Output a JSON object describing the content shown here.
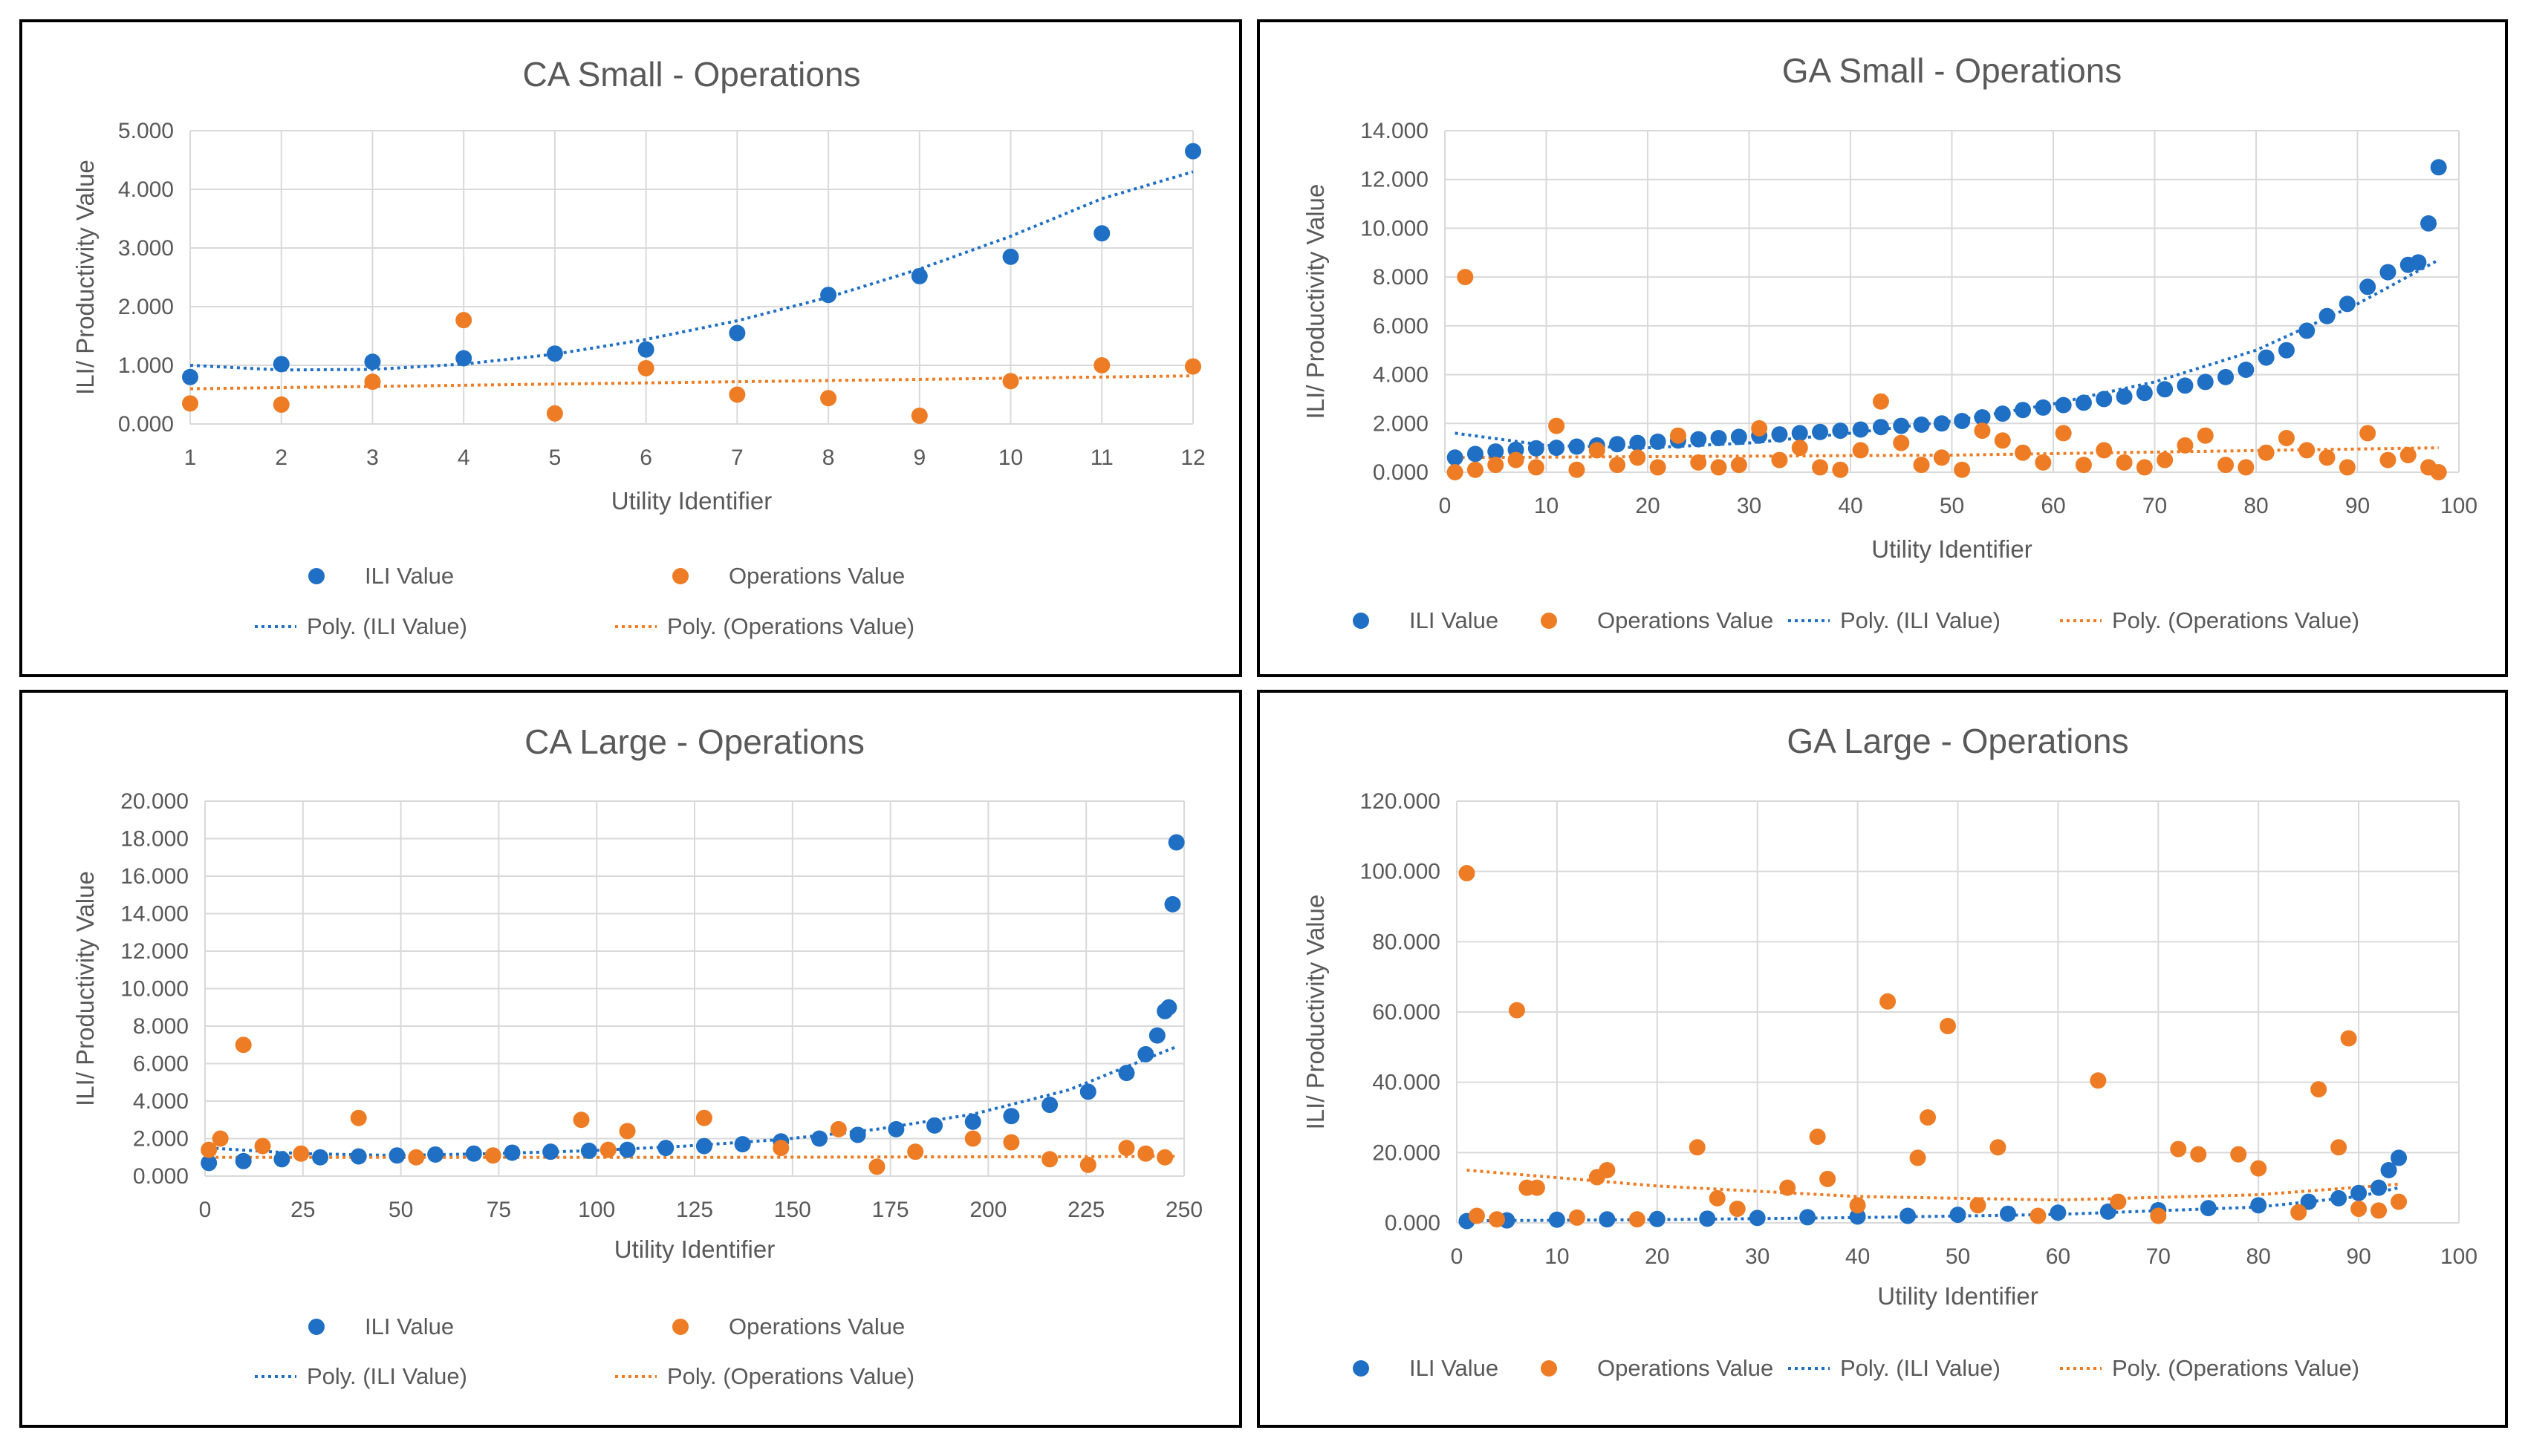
{
  "colors": {
    "ili": "#1f6fc4",
    "operations": "#ee7c24",
    "grid": "#d9d9d9",
    "text": "#595959",
    "border": "#000000"
  },
  "legend_labels": [
    "ILI Value",
    "Operations Value",
    "Poly. (ILI Value)",
    "Poly. (Operations Value)"
  ],
  "chart_data": [
    {
      "type": "scatter",
      "title": "CA Small - Operations",
      "xlabel": "Utility Identifier",
      "ylabel": "ILI/ Productivity Value",
      "xlim": [
        1,
        12
      ],
      "ylim": [
        0,
        5
      ],
      "xticks": [
        "1",
        "2",
        "3",
        "4",
        "5",
        "6",
        "7",
        "8",
        "9",
        "10",
        "11",
        "12"
      ],
      "yticks": [
        "0.000",
        "1.000",
        "2.000",
        "3.000",
        "4.000",
        "5.000"
      ],
      "grid": true,
      "legend_position": "bottom",
      "series": [
        {
          "name": "ILI Value",
          "x": [
            1,
            2,
            3,
            4,
            5,
            6,
            7,
            8,
            9,
            10,
            11,
            12
          ],
          "y": [
            0.8,
            1.02,
            1.06,
            1.12,
            1.2,
            1.27,
            1.55,
            2.2,
            2.52,
            2.85,
            3.25,
            4.65
          ]
        },
        {
          "name": "Operations Value",
          "x": [
            1,
            2,
            3,
            4,
            5,
            6,
            7,
            8,
            9,
            10,
            11,
            12
          ],
          "y": [
            0.35,
            0.33,
            0.72,
            1.77,
            0.18,
            0.95,
            0.5,
            0.44,
            0.14,
            0.73,
            1.0,
            0.98
          ]
        }
      ],
      "trendlines": [
        {
          "name": "Poly. (ILI Value)",
          "x": [
            1,
            2,
            3,
            4,
            5,
            6,
            7,
            8,
            9,
            10,
            11,
            12
          ],
          "y": [
            1.0,
            0.92,
            0.93,
            1.02,
            1.19,
            1.44,
            1.76,
            2.16,
            2.64,
            3.2,
            3.84,
            4.3
          ]
        },
        {
          "name": "Poly. (Operations Value)",
          "x": [
            1,
            12
          ],
          "y": [
            0.6,
            0.82
          ]
        }
      ]
    },
    {
      "type": "scatter",
      "title": "GA Small - Operations",
      "xlabel": "Utility Identifier",
      "ylabel": "ILI/ Productivity Value",
      "xlim": [
        0,
        100
      ],
      "ylim": [
        0,
        14
      ],
      "xticks": [
        "0",
        "10",
        "20",
        "30",
        "40",
        "50",
        "60",
        "70",
        "80",
        "90",
        "100"
      ],
      "yticks": [
        "0.000",
        "2.000",
        "4.000",
        "6.000",
        "8.000",
        "10.000",
        "12.000",
        "14.000"
      ],
      "grid": true,
      "legend_position": "bottom",
      "series": [
        {
          "name": "ILI Value",
          "x": [
            1,
            3,
            5,
            7,
            9,
            11,
            13,
            15,
            17,
            19,
            21,
            23,
            25,
            27,
            29,
            31,
            33,
            35,
            37,
            39,
            41,
            43,
            45,
            47,
            49,
            51,
            53,
            55,
            57,
            59,
            61,
            63,
            65,
            67,
            69,
            71,
            73,
            75,
            77,
            79,
            81,
            83,
            85,
            87,
            89,
            91,
            93,
            95,
            96,
            97,
            98
          ],
          "y": [
            0.6,
            0.75,
            0.85,
            0.92,
            0.98,
            1.0,
            1.05,
            1.1,
            1.15,
            1.2,
            1.25,
            1.3,
            1.35,
            1.4,
            1.45,
            1.5,
            1.55,
            1.6,
            1.65,
            1.7,
            1.75,
            1.85,
            1.9,
            1.95,
            2.0,
            2.1,
            2.25,
            2.4,
            2.55,
            2.65,
            2.75,
            2.85,
            3.0,
            3.1,
            3.25,
            3.4,
            3.55,
            3.7,
            3.9,
            4.2,
            4.7,
            5.0,
            5.8,
            6.4,
            6.9,
            7.6,
            8.2,
            8.5,
            8.6,
            10.2,
            12.5
          ]
        },
        {
          "name": "Operations Value",
          "x": [
            1,
            2,
            3,
            5,
            7,
            9,
            11,
            13,
            15,
            17,
            19,
            21,
            23,
            25,
            27,
            29,
            31,
            33,
            35,
            37,
            39,
            41,
            43,
            45,
            47,
            49,
            51,
            53,
            55,
            57,
            59,
            61,
            63,
            65,
            67,
            69,
            71,
            73,
            75,
            77,
            79,
            81,
            83,
            85,
            87,
            89,
            91,
            93,
            95,
            97,
            98
          ],
          "y": [
            0.0,
            8.0,
            0.1,
            0.3,
            0.5,
            0.2,
            1.9,
            0.1,
            0.9,
            0.3,
            0.6,
            0.2,
            1.5,
            0.4,
            0.2,
            0.3,
            1.8,
            0.5,
            1.0,
            0.2,
            0.1,
            0.9,
            2.9,
            1.2,
            0.3,
            0.6,
            0.1,
            1.7,
            1.3,
            0.8,
            0.4,
            1.6,
            0.3,
            0.9,
            0.4,
            0.2,
            0.5,
            1.1,
            1.5,
            0.3,
            0.2,
            0.8,
            1.4,
            0.9,
            0.6,
            0.2,
            1.6,
            0.5,
            0.7,
            0.2,
            0.0
          ]
        }
      ],
      "trendlines": [
        {
          "name": "Poly. (ILI Value)",
          "x": [
            1,
            10,
            20,
            30,
            40,
            50,
            60,
            70,
            80,
            90,
            98
          ],
          "y": [
            1.6,
            1.1,
            1.0,
            1.2,
            1.6,
            2.1,
            2.8,
            3.7,
            5.0,
            6.9,
            8.7
          ]
        },
        {
          "name": "Poly. (Operations Value)",
          "x": [
            1,
            50,
            98
          ],
          "y": [
            0.6,
            0.7,
            1.0
          ]
        }
      ]
    },
    {
      "type": "scatter",
      "title": "CA Large - Operations",
      "xlabel": "Utility Identifier",
      "ylabel": "ILI/ Productivity Value",
      "xlim": [
        0,
        255
      ],
      "ylim": [
        0,
        20
      ],
      "xticks": [
        "0",
        "25",
        "50",
        "75",
        "100",
        "125",
        "150",
        "175",
        "200",
        "225",
        "250"
      ],
      "yticks": [
        "0.000",
        "2.000",
        "4.000",
        "6.000",
        "8.000",
        "10.000",
        "12.000",
        "14.000",
        "16.000",
        "18.000",
        "20.000"
      ],
      "grid": true,
      "legend_position": "bottom",
      "series": [
        {
          "name": "ILI Value",
          "x": [
            1,
            10,
            20,
            30,
            40,
            50,
            60,
            70,
            80,
            90,
            100,
            110,
            120,
            130,
            140,
            150,
            160,
            170,
            180,
            190,
            200,
            210,
            220,
            230,
            240,
            245,
            248,
            250,
            251,
            252,
            253
          ],
          "y": [
            0.7,
            0.8,
            0.9,
            1.0,
            1.05,
            1.1,
            1.15,
            1.2,
            1.25,
            1.3,
            1.35,
            1.4,
            1.5,
            1.6,
            1.7,
            1.85,
            2.0,
            2.2,
            2.5,
            2.7,
            2.9,
            3.2,
            3.8,
            4.5,
            5.5,
            6.5,
            7.5,
            8.8,
            9.0,
            14.5,
            17.8
          ]
        },
        {
          "name": "Operations Value",
          "x": [
            1,
            4,
            10,
            15,
            25,
            40,
            55,
            75,
            98,
            105,
            110,
            130,
            150,
            165,
            175,
            185,
            200,
            210,
            220,
            230,
            240,
            245,
            250
          ],
          "y": [
            1.4,
            2.0,
            7.0,
            1.6,
            1.2,
            3.1,
            1.0,
            1.1,
            3.0,
            1.4,
            2.4,
            3.1,
            1.5,
            2.5,
            0.5,
            1.3,
            2.0,
            1.8,
            0.9,
            0.6,
            1.5,
            1.2,
            1.0
          ]
        }
      ],
      "trendlines": [
        {
          "name": "Poly. (ILI Value)",
          "x": [
            1,
            25,
            50,
            75,
            100,
            125,
            150,
            175,
            200,
            225,
            253
          ],
          "y": [
            1.5,
            1.2,
            1.1,
            1.2,
            1.35,
            1.6,
            1.95,
            2.5,
            3.3,
            4.6,
            6.9
          ]
        },
        {
          "name": "Poly. (Operations Value)",
          "x": [
            1,
            128,
            253
          ],
          "y": [
            1.0,
            1.0,
            1.05
          ]
        }
      ]
    },
    {
      "type": "scatter",
      "title": "GA Large - Operations",
      "xlabel": "Utility Identifier",
      "ylabel": "ILI/ Productivity Value",
      "xlim": [
        0,
        100
      ],
      "ylim": [
        0,
        120
      ],
      "xticks": [
        "0",
        "10",
        "20",
        "30",
        "40",
        "50",
        "60",
        "70",
        "80",
        "90",
        "100"
      ],
      "yticks": [
        "0.000",
        "20.000",
        "40.000",
        "60.000",
        "80.000",
        "100.000",
        "120.000"
      ],
      "grid": true,
      "legend_position": "bottom",
      "series": [
        {
          "name": "ILI Value",
          "x": [
            1,
            5,
            10,
            15,
            20,
            25,
            30,
            35,
            40,
            45,
            50,
            55,
            60,
            65,
            70,
            75,
            80,
            85,
            88,
            90,
            92,
            93,
            94
          ],
          "y": [
            0.5,
            0.7,
            0.9,
            1.0,
            1.1,
            1.2,
            1.4,
            1.6,
            1.8,
            2.0,
            2.3,
            2.6,
            2.9,
            3.2,
            3.6,
            4.2,
            5.0,
            6.0,
            7.0,
            8.5,
            10.0,
            15.0,
            18.5
          ]
        },
        {
          "name": "Operations Value",
          "x": [
            1,
            2,
            4,
            6,
            7,
            8,
            12,
            14,
            15,
            18,
            24,
            26,
            28,
            33,
            36,
            37,
            40,
            43,
            46,
            47,
            49,
            52,
            54,
            58,
            64,
            66,
            70,
            72,
            74,
            78,
            80,
            84,
            86,
            88,
            89,
            90,
            92,
            94
          ],
          "y": [
            99.5,
            2.0,
            1.0,
            60.5,
            10.0,
            10.0,
            1.5,
            13.0,
            15.0,
            1.0,
            21.5,
            7.0,
            4.0,
            10.0,
            24.5,
            12.5,
            5.0,
            63.0,
            18.5,
            30.0,
            56.0,
            5.0,
            21.5,
            2.0,
            40.5,
            6.0,
            2.0,
            21.0,
            19.5,
            19.5,
            15.5,
            3.0,
            38.0,
            21.5,
            52.5,
            4.0,
            3.5,
            6.0
          ]
        }
      ],
      "trendlines": [
        {
          "name": "Poly. (ILI Value)",
          "x": [
            1,
            20,
            40,
            60,
            80,
            90,
            94
          ],
          "y": [
            0.6,
            0.9,
            1.5,
            2.4,
            4.5,
            7.5,
            10.0
          ]
        },
        {
          "name": "Poly. (Operations Value)",
          "x": [
            1,
            20,
            40,
            60,
            80,
            94
          ],
          "y": [
            15.0,
            10.5,
            7.5,
            6.5,
            8.0,
            11.0
          ]
        }
      ]
    }
  ]
}
